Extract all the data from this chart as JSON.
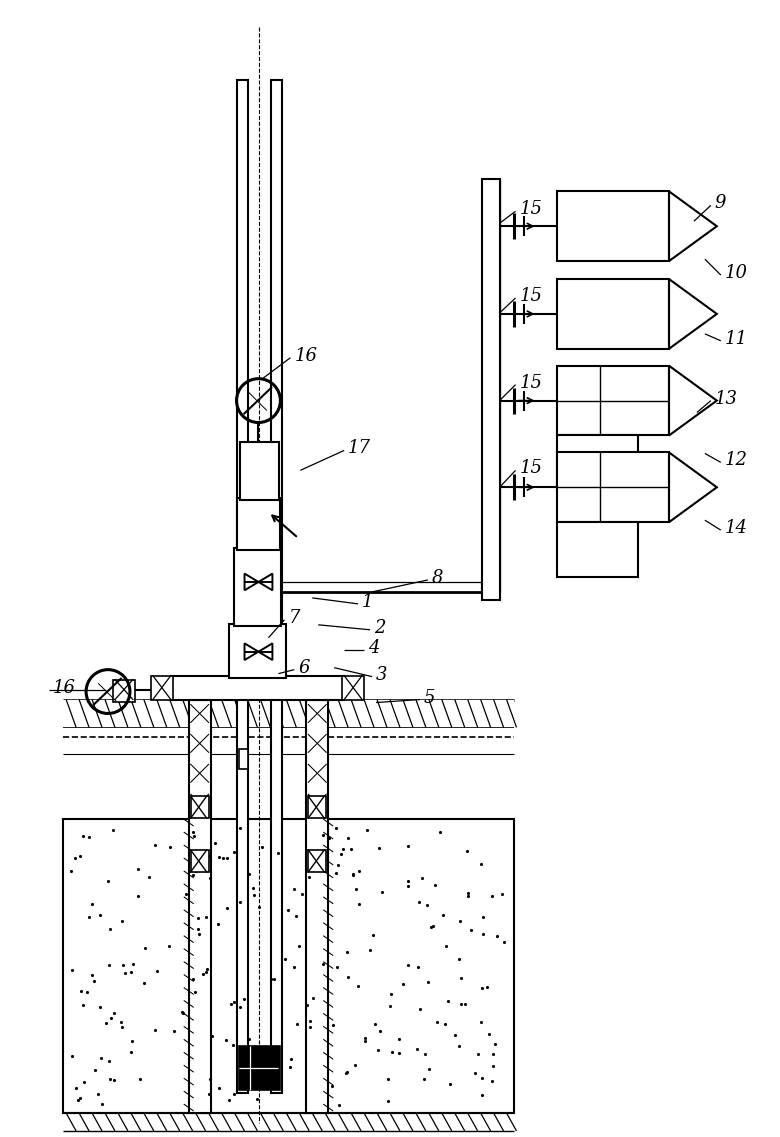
{
  "bg_color": "#ffffff",
  "fig_width": 7.8,
  "fig_height": 11.37,
  "dpi": 100
}
